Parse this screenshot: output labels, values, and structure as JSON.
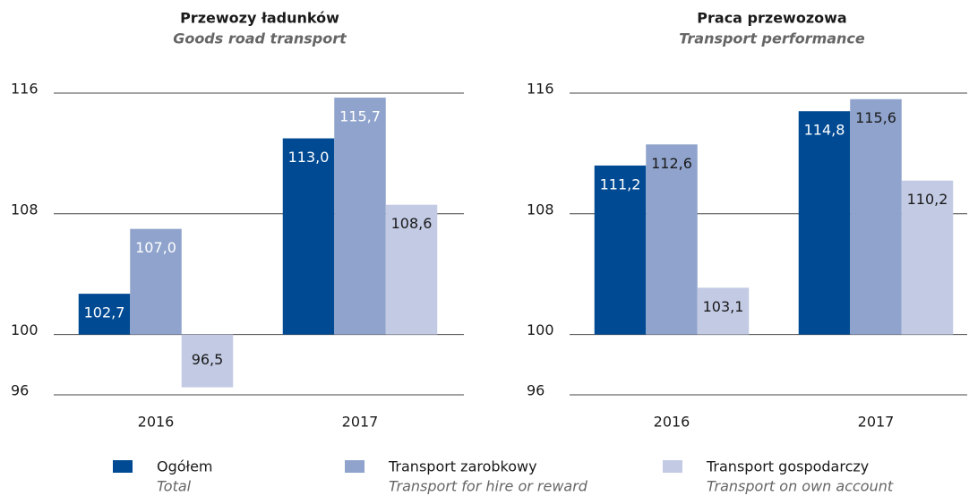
{
  "chart_data": [
    {
      "type": "bar",
      "title": "Przewozy ładunków",
      "subtitle": "Goods road transport",
      "categories": [
        "2016",
        "2017"
      ],
      "base": 100,
      "ylim": [
        96,
        116
      ],
      "yticks": [
        96,
        100,
        108,
        116
      ],
      "grid": true,
      "series": [
        {
          "name": "Ogółem",
          "name_en": "Total",
          "color": "#004a93",
          "label_color": "#ffffff",
          "values": [
            102.7,
            113.0
          ],
          "value_labels": [
            "102,7",
            "113,0"
          ]
        },
        {
          "name": "Transport zarobkowy",
          "name_en": "Transport for hire or reward",
          "color": "#8fa3cc",
          "label_color": "#ffffff",
          "values": [
            107.0,
            115.7
          ],
          "value_labels": [
            "107,0",
            "115,7"
          ]
        },
        {
          "name": "Transport gospodarczy",
          "name_en": "Transport on own account",
          "color": "#c3cae4",
          "label_color": "#1a1a1a",
          "values": [
            96.5,
            108.6
          ],
          "value_labels": [
            "96,5",
            "108,6"
          ]
        }
      ]
    },
    {
      "type": "bar",
      "title": "Praca przewozowa",
      "subtitle": "Transport performance",
      "categories": [
        "2016",
        "2017"
      ],
      "base": 100,
      "ylim": [
        96,
        116
      ],
      "yticks": [
        96,
        100,
        108,
        116
      ],
      "grid": true,
      "series": [
        {
          "name": "Ogółem",
          "name_en": "Total",
          "color": "#004a93",
          "label_color": "#ffffff",
          "values": [
            111.2,
            114.8
          ],
          "value_labels": [
            "111,2",
            "114,8"
          ]
        },
        {
          "name": "Transport zarobkowy",
          "name_en": "Transport for hire or reward",
          "color": "#8fa3cc",
          "label_color": "#1a1a1a",
          "values": [
            112.6,
            115.6
          ],
          "value_labels": [
            "112,6",
            "115,6"
          ]
        },
        {
          "name": "Transport gospodarczy",
          "name_en": "Transport on own account",
          "color": "#c3cae4",
          "label_color": "#1a1a1a",
          "values": [
            103.1,
            110.2
          ],
          "value_labels": [
            "103,1",
            "110,2"
          ]
        }
      ]
    }
  ]
}
